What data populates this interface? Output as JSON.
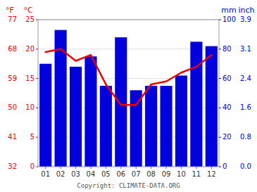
{
  "chart_data": {
    "type": "bar",
    "categories": [
      "01",
      "02",
      "03",
      "04",
      "05",
      "06",
      "07",
      "08",
      "09",
      "10",
      "11",
      "12"
    ],
    "series": [
      {
        "type": "bar",
        "axis": "y2",
        "color": "#0000dd",
        "values": [
          70,
          93,
          68,
          75,
          55,
          88,
          52,
          55,
          55,
          62,
          85,
          82
        ]
      },
      {
        "type": "line",
        "color": "#ee0000",
        "values": [
          19.5,
          20.0,
          18.0,
          19.0,
          14.0,
          10.5,
          10.5,
          14.0,
          14.5,
          16.0,
          17.0,
          19.0
        ]
      }
    ],
    "ylim": [
      0,
      25
    ],
    "yticks": [
      0,
      5,
      10,
      15,
      20,
      25
    ],
    "ylabel": "°C",
    "yticks_outer": [
      {
        "value": 0,
        "label": "32"
      },
      {
        "value": 5,
        "label": "41"
      },
      {
        "value": 10,
        "label": "50"
      },
      {
        "value": 15,
        "label": "59"
      },
      {
        "value": 20,
        "label": "68"
      },
      {
        "value": 25,
        "label": "77"
      }
    ],
    "ylabel_outer": "°F",
    "y2lim": [
      0,
      100
    ],
    "y2ticks": [
      0,
      20,
      40,
      60,
      80,
      100
    ],
    "y2label": "mm",
    "y2ticks_outer": [
      {
        "value": 0,
        "label": "0.0"
      },
      {
        "value": 20,
        "label": "0.8"
      },
      {
        "value": 40,
        "label": "1.6"
      },
      {
        "value": 60,
        "label": "2.4"
      },
      {
        "value": 80,
        "label": "3.1"
      },
      {
        "value": 100,
        "label": "3.9"
      }
    ],
    "y2label_outer": "inch",
    "grid": true,
    "annotations": [
      "Copyright: CLIMATE-DATA.ORG"
    ]
  }
}
